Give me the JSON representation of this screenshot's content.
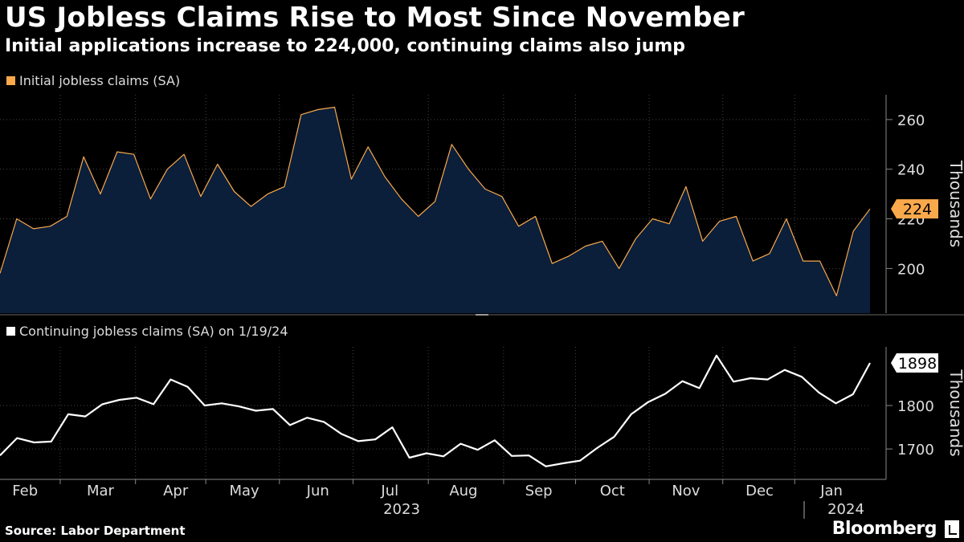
{
  "title": "US Jobless Claims Rise to Most Since November",
  "subtitle": "Initial applications increase to 224,000, continuing claims also jump",
  "source": "Source: Labor Department",
  "brand": "Bloomberg",
  "colors": {
    "initial": "#f9a94b",
    "initial_fill": "#0b1e3a",
    "continuing": "#ffffff",
    "grid": "#444444",
    "background": "#000000"
  },
  "chart_data": [
    {
      "type": "area",
      "series": [
        {
          "name": "Initial jobless claims (SA)",
          "values": [
            198,
            220,
            216,
            217,
            221,
            245,
            230,
            247,
            246,
            228,
            240,
            246,
            229,
            242,
            231,
            225,
            230,
            233,
            262,
            264,
            265,
            236,
            249,
            237,
            228,
            221,
            227,
            250,
            240,
            232,
            229,
            217,
            221,
            202,
            205,
            209,
            211,
            200,
            212,
            220,
            218,
            233,
            211,
            219,
            221,
            203,
            206,
            220,
            203,
            203,
            189,
            215,
            224
          ]
        }
      ],
      "ylim": [
        182,
        270
      ],
      "yticks": [
        200,
        220,
        240,
        260
      ],
      "ylabel": "Thousands",
      "last_value_label": "224"
    },
    {
      "type": "line",
      "series": [
        {
          "name": "Continuing jobless claims (SA) on 1/19/24",
          "values": [
            1685,
            1725,
            1715,
            1717,
            1780,
            1775,
            1803,
            1813,
            1818,
            1803,
            1860,
            1843,
            1800,
            1805,
            1798,
            1788,
            1792,
            1755,
            1772,
            1762,
            1735,
            1718,
            1722,
            1750,
            1680,
            1690,
            1683,
            1712,
            1698,
            1720,
            1684,
            1685,
            1660,
            1667,
            1673,
            1702,
            1728,
            1780,
            1808,
            1827,
            1856,
            1840,
            1915,
            1855,
            1863,
            1860,
            1882,
            1866,
            1830,
            1805,
            1826,
            1898
          ]
        }
      ],
      "ylim": [
        1630,
        1935
      ],
      "yticks": [
        1700,
        1800
      ],
      "ylabel": "Thousands",
      "last_value_label": "1898"
    }
  ],
  "x_axis": {
    "months": [
      "Feb",
      "Mar",
      "Apr",
      "May",
      "Jun",
      "Jul",
      "Aug",
      "Sep",
      "Oct",
      "Nov",
      "Dec",
      "Jan"
    ],
    "year_labels": [
      "2023",
      "2024"
    ]
  }
}
